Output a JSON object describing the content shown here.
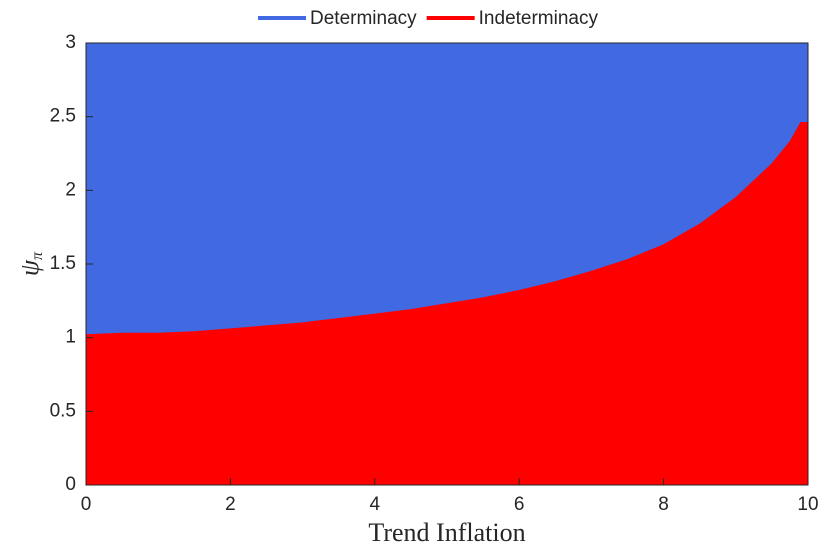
{
  "chart_data": {
    "type": "region",
    "xlabel": "Trend Inflation",
    "ylabel": {
      "symbol": "ψ",
      "subscript": "π"
    },
    "x": [
      0,
      0.5,
      1,
      1.5,
      2,
      2.5,
      3,
      3.5,
      4,
      4.5,
      5,
      5.5,
      6,
      6.5,
      7,
      7.5,
      8,
      8.5,
      9,
      9.5,
      9.75,
      9.9
    ],
    "boundary": [
      1.02,
      1.03,
      1.03,
      1.04,
      1.06,
      1.08,
      1.1,
      1.13,
      1.16,
      1.19,
      1.23,
      1.27,
      1.32,
      1.38,
      1.45,
      1.53,
      1.63,
      1.77,
      1.95,
      2.18,
      2.33,
      2.46
    ],
    "series": [
      {
        "name": "Determinacy",
        "color": "#4169e1",
        "fill": "above"
      },
      {
        "name": "Indeterminacy",
        "color": "#ff0000",
        "fill": "below"
      }
    ],
    "xlim": [
      0,
      10
    ],
    "xticks": [
      0,
      2,
      4,
      6,
      8,
      10
    ],
    "ylim": [
      0,
      3
    ],
    "yticks": [
      0,
      0.5,
      1,
      1.5,
      2,
      2.5,
      3
    ],
    "legend": "top"
  }
}
